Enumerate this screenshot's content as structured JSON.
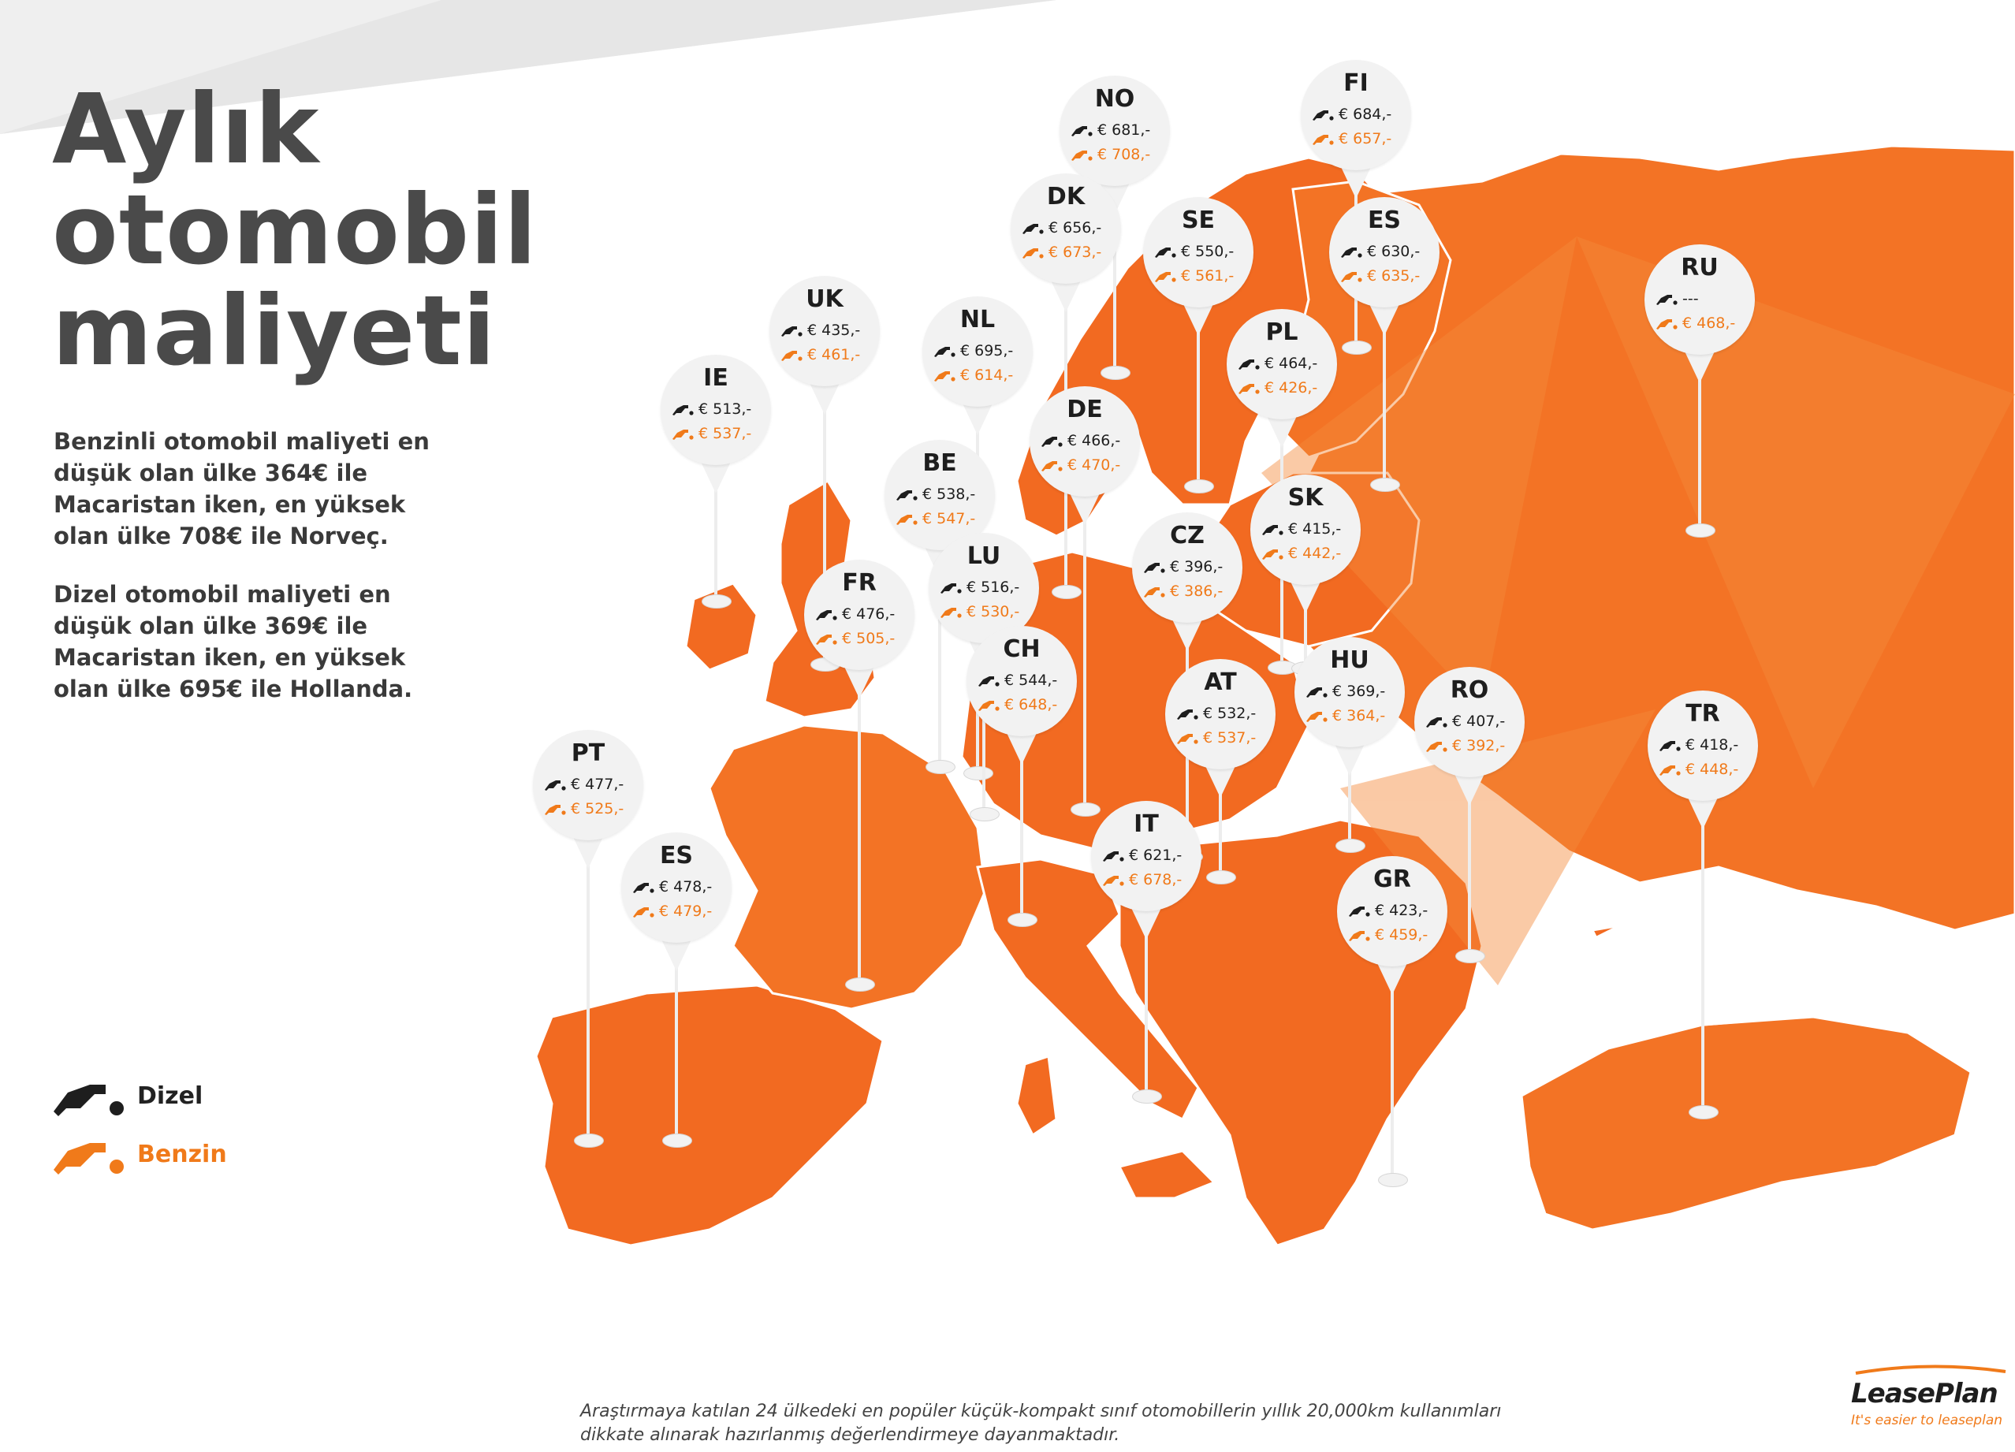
{
  "title_lines": [
    "Aylık",
    "otomobil",
    "maliyeti"
  ],
  "paragraph_petrol": "Benzinli otomobil maliyeti en düşük olan ülke 364€ ile Macaristan iken, en yüksek olan ülke 708€ ile Norveç.",
  "paragraph_diesel": "Dizel otomobil maliyeti en düşük olan ülke 369€ ile Macaristan iken, en yüksek olan ülke 695€ ile Hollanda.",
  "legend": {
    "diesel_label": "Dizel",
    "petrol_label": "Benzin",
    "diesel_icon": "fuel-nozzle-icon",
    "petrol_icon": "fuel-nozzle-icon"
  },
  "colors": {
    "map_orange": "#f26a21",
    "map_orange_light": "#f58a3a",
    "petrol_orange": "#f07a1a",
    "diesel_black": "#1e1e1e",
    "pin_bg": "#f2f2f2",
    "title_gray": "#4a4a4a"
  },
  "countries": [
    {
      "code": "NO",
      "diesel": "€ 681,-",
      "petrol": "€ 708,-"
    },
    {
      "code": "FI",
      "diesel": "€ 684,-",
      "petrol": "€ 657,-"
    },
    {
      "code": "DK",
      "diesel": "€ 656,-",
      "petrol": "€ 673,-"
    },
    {
      "code": "SE",
      "diesel": "€ 550,-",
      "petrol": "€ 561,-"
    },
    {
      "code": "ES",
      "diesel": "€ 630,-",
      "petrol": "€ 635,-"
    },
    {
      "code": "RU",
      "diesel": "---",
      "petrol": "€ 468,-"
    },
    {
      "code": "UK",
      "diesel": "€ 435,-",
      "petrol": "€ 461,-"
    },
    {
      "code": "NL",
      "diesel": "€ 695,-",
      "petrol": "€ 614,-"
    },
    {
      "code": "PL",
      "diesel": "€ 464,-",
      "petrol": "€ 426,-"
    },
    {
      "code": "IE",
      "diesel": "€ 513,-",
      "petrol": "€ 537,-"
    },
    {
      "code": "DE",
      "diesel": "€ 466,-",
      "petrol": "€ 470,-"
    },
    {
      "code": "BE",
      "diesel": "€ 538,-",
      "petrol": "€ 547,-"
    },
    {
      "code": "SK",
      "diesel": "€ 415,-",
      "petrol": "€ 442,-"
    },
    {
      "code": "LU",
      "diesel": "€ 516,-",
      "petrol": "€ 530,-"
    },
    {
      "code": "CZ",
      "diesel": "€ 396,-",
      "petrol": "€ 386,-"
    },
    {
      "code": "FR",
      "diesel": "€ 476,-",
      "petrol": "€ 505,-"
    },
    {
      "code": "CH",
      "diesel": "€ 544,-",
      "petrol": "€ 648,-"
    },
    {
      "code": "HU",
      "diesel": "€ 369,-",
      "petrol": "€ 364,-"
    },
    {
      "code": "AT",
      "diesel": "€ 532,-",
      "petrol": "€ 537,-"
    },
    {
      "code": "RO",
      "diesel": "€ 407,-",
      "petrol": "€ 392,-"
    },
    {
      "code": "TR",
      "diesel": "€ 418,-",
      "petrol": "€ 448,-"
    },
    {
      "code": "PT",
      "diesel": "€ 477,-",
      "petrol": "€ 525,-"
    },
    {
      "code": "IT",
      "diesel": "€ 621,-",
      "petrol": "€ 678,-"
    },
    {
      "code": "ES",
      "diesel": "€ 478,-",
      "petrol": "€ 479,-"
    },
    {
      "code": "GR",
      "diesel": "€ 423,-",
      "petrol": "€ 459,-"
    }
  ],
  "footnote": "Araştırmaya katılan 24 ülkedeki en popüler küçük-kompakt sınıf otomobillerin yıllık 20,000km kullanımları dikkate alınarak hazırlanmış değerlendirmeye dayanmaktadır.",
  "logo": {
    "brand": "LeasePlan",
    "tagline": "It's easier to leaseplan"
  }
}
